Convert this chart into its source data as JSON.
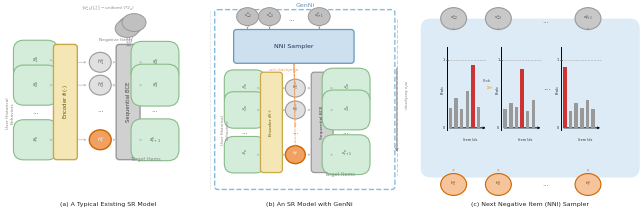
{
  "fig_width": 6.4,
  "fig_height": 2.12,
  "dpi": 100,
  "bg_color": "#ffffff",
  "panel_a_label": "(a) A Typical Existing SR Model",
  "panel_b_label": "(b) An SR Model with GenNi",
  "panel_c_label": "(c) Next Negative Item (NNI) Sampler",
  "colors": {
    "encoder_fill": "#f5e6b5",
    "encoder_stroke": "#c8a84b",
    "bce_fill": "#d0d0d0",
    "bce_stroke": "#999999",
    "node_green_fill": "#d4edda",
    "node_green_stroke": "#88bb88",
    "node_orange_fill": "#f0a060",
    "node_orange_stroke": "#cc6600",
    "node_gray_fill": "#c0c0c0",
    "node_gray_stroke": "#999999",
    "arrow_gray": "#bbbbbb",
    "arrow_orange": "#f0a060",
    "dashed_blue": "#6699bb",
    "nni_box_fill": "#cce0f0",
    "nni_box_stroke": "#6699bb",
    "genni_box_stroke": "#88bbdd",
    "panel_c_fill": "#daeaf5",
    "bar_red": "#cc3333",
    "bar_gray": "#999999",
    "text_dark": "#222222",
    "text_gray": "#888888",
    "text_label": "#555555"
  }
}
